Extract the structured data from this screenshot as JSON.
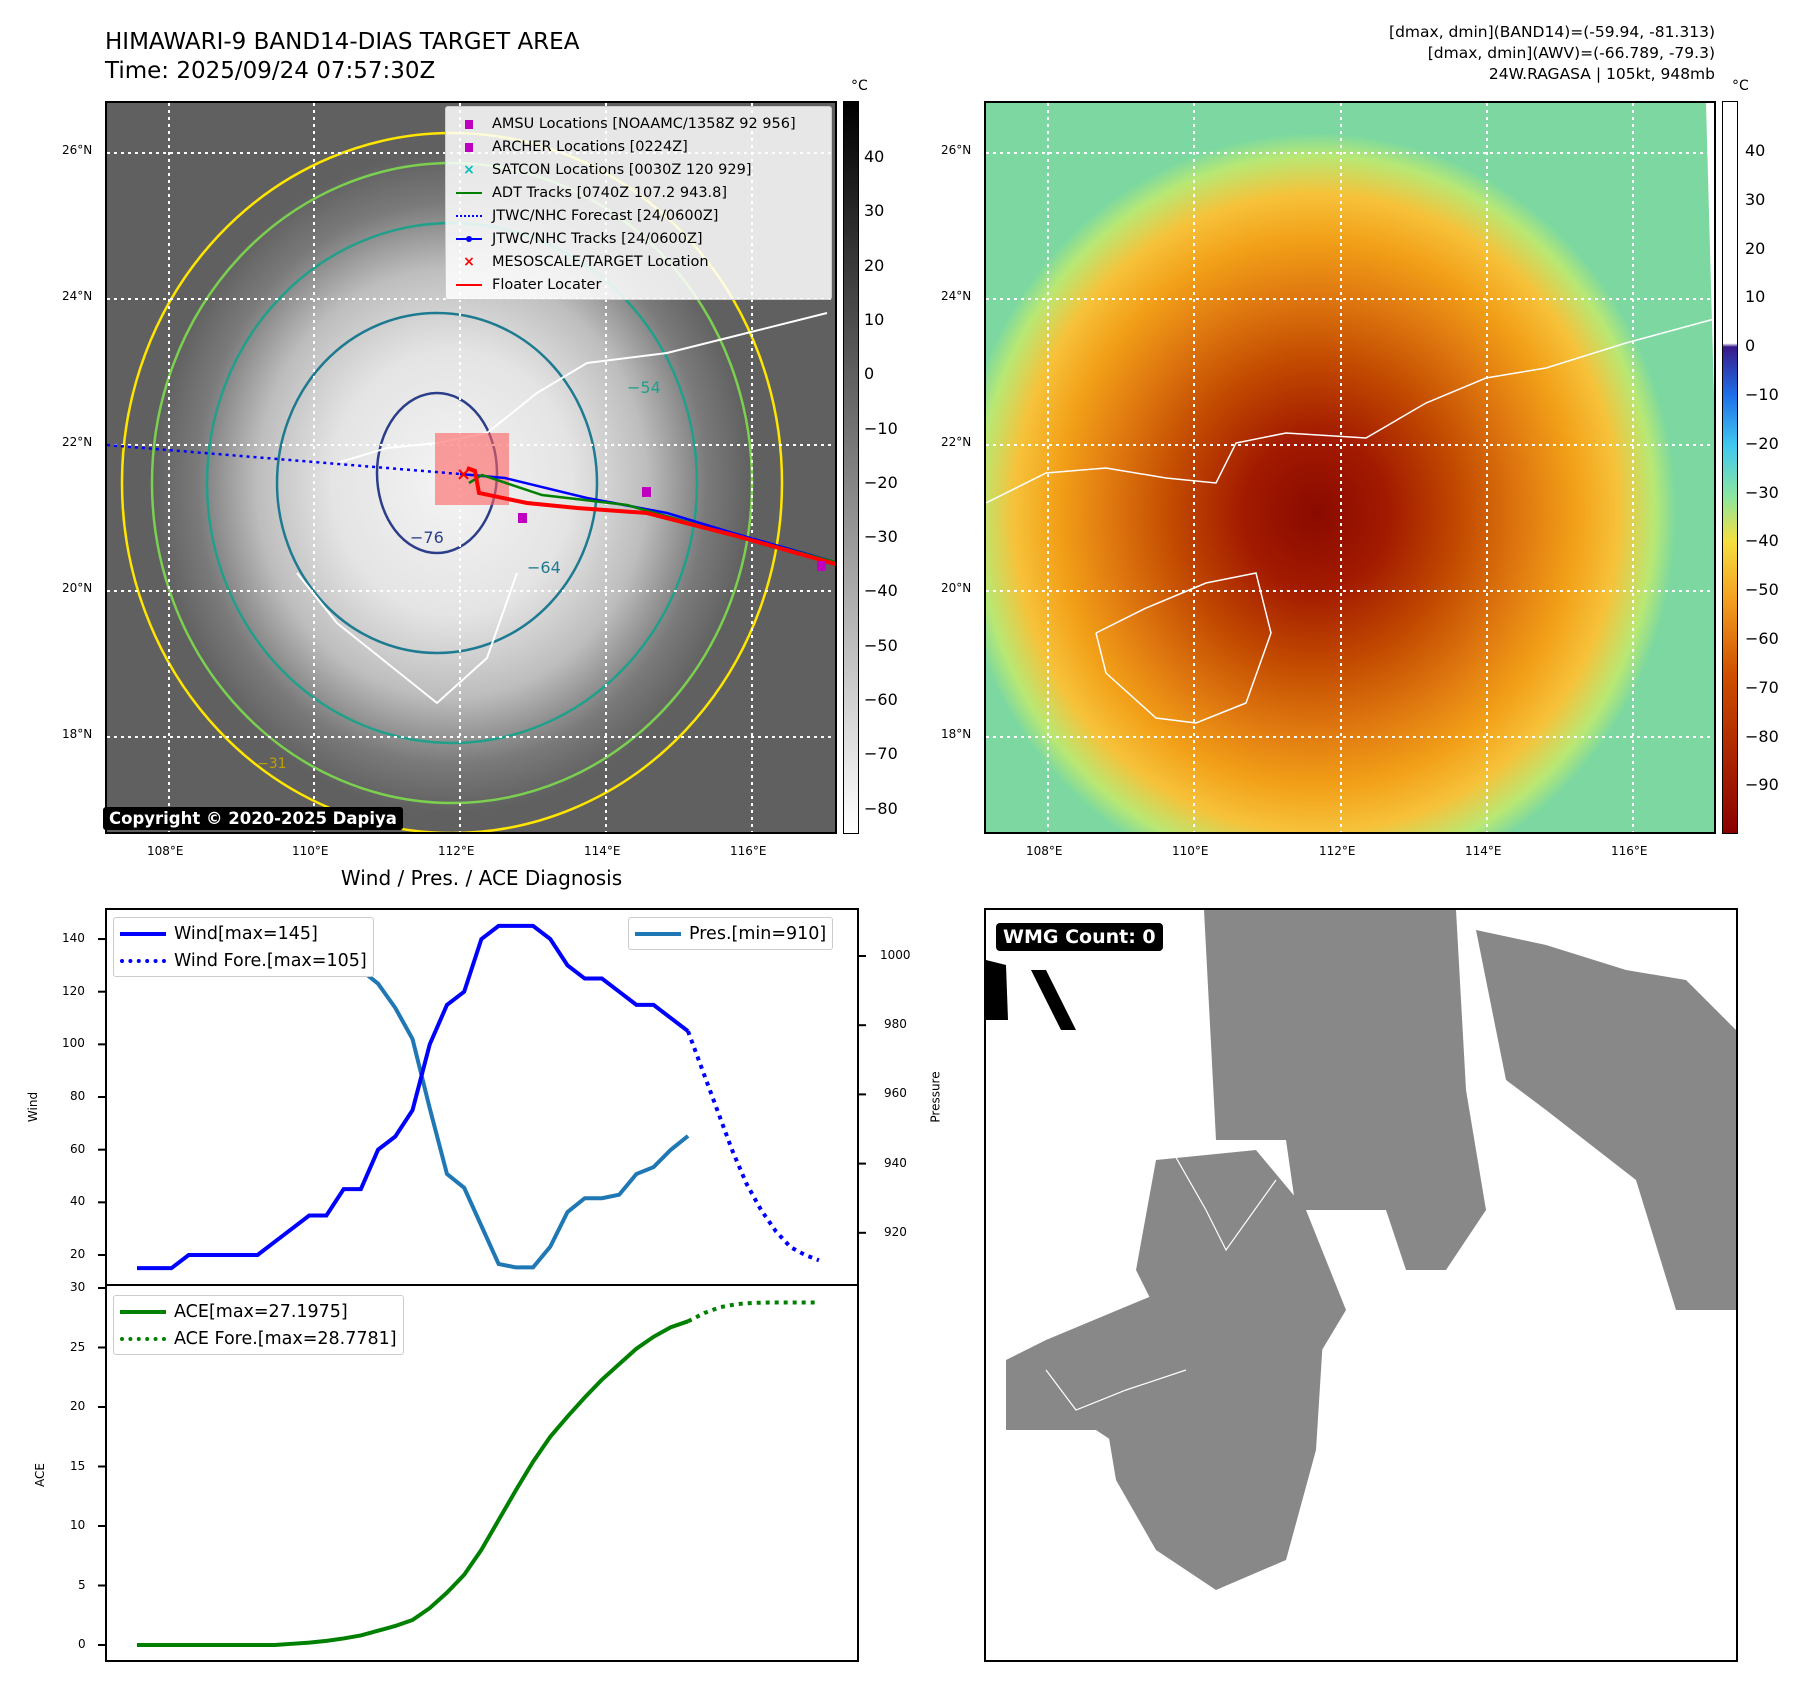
{
  "header": {
    "title": "HIMAWARI-9 BAND14-DIAS TARGET AREA",
    "time": "Time: 2025/09/24 07:57:30Z"
  },
  "info": {
    "line1": "[dmax, dmin](BAND14)=(-59.94, -81.313)",
    "line2": "[dmax, dmin](AWV)=(-66.789, -79.3)",
    "line3": "24W.RAGASA | 105kt, 948mb"
  },
  "map": {
    "lat_labels": [
      "26°N",
      "24°N",
      "22°N",
      "20°N",
      "18°N"
    ],
    "lon_labels": [
      "108°E",
      "110°E",
      "112°E",
      "114°E",
      "116°E"
    ],
    "unit": "°C",
    "cbar_left_ticks": [
      "40",
      "30",
      "20",
      "10",
      "0",
      "−10",
      "−20",
      "−30",
      "−40",
      "−50",
      "−60",
      "−70",
      "−80"
    ],
    "cbar_right_ticks": [
      "40",
      "30",
      "20",
      "10",
      "0",
      "−10",
      "−20",
      "−30",
      "−40",
      "−50",
      "−60",
      "−70",
      "−80",
      "−90"
    ],
    "contour_labels": [
      "−76",
      "−64",
      "−54",
      "−31"
    ],
    "copyright": "Copyright © 2020-2025 Dapiya",
    "legend": [
      {
        "label": "AMSU Locations [NOAAMC/1358Z 92 956]",
        "color": "#c000c0",
        "icon": "square-marker"
      },
      {
        "label": "ARCHER Locations [0224Z]",
        "color": "#c000c0",
        "icon": "square-marker"
      },
      {
        "label": "SATCON Locations [0030Z 120 929]",
        "color": "#00c0c0",
        "icon": "x-marker"
      },
      {
        "label": "ADT Tracks [0740Z 107.2 943.8]",
        "color": "#008000",
        "icon": "line"
      },
      {
        "label": "JTWC/NHC Forecast [24/0600Z]",
        "color": "#0000ff",
        "icon": "dotted-line"
      },
      {
        "label": "JTWC/NHC Tracks [24/0600Z]",
        "color": "#0000ff",
        "icon": "line-dot"
      },
      {
        "label": "MESOSCALE/TARGET Location",
        "color": "#ff0000",
        "icon": "x-marker"
      },
      {
        "label": "Floater Locater",
        "color": "#ff0000",
        "icon": "line"
      }
    ]
  },
  "wmg": {
    "label": "WMG Count: 0"
  },
  "chart_data": [
    {
      "type": "line",
      "title": "Wind / Pres. / ACE Diagnosis",
      "ylabel": "Wind",
      "ylabel_right": "Pressure",
      "ylim": [
        10,
        150
      ],
      "ylim_right": [
        905,
        1013
      ],
      "yticks": [
        "20",
        "40",
        "60",
        "80",
        "100",
        "120",
        "140"
      ],
      "yticks_right": [
        "920",
        "940",
        "960",
        "980",
        "1000"
      ],
      "series": [
        {
          "name": "Wind[max=145]",
          "color": "#0000ff",
          "style": "solid",
          "x": [
            0,
            1,
            2,
            3,
            4,
            5,
            6,
            7,
            8,
            9,
            10,
            11,
            12,
            13,
            14,
            15,
            16,
            17,
            18,
            19,
            20,
            21,
            22,
            23,
            24,
            25,
            26,
            27,
            28,
            29,
            30,
            31,
            32
          ],
          "values": [
            15,
            15,
            15,
            20,
            20,
            20,
            20,
            20,
            25,
            30,
            35,
            35,
            45,
            45,
            60,
            65,
            75,
            100,
            115,
            120,
            140,
            145,
            145,
            145,
            140,
            130,
            125,
            125,
            120,
            115,
            115,
            110,
            105
          ]
        },
        {
          "name": "Wind Fore.[max=105]",
          "color": "#0000ff",
          "style": "dotted",
          "x": [
            32,
            32.85,
            33.7,
            34.55,
            35.4,
            36.25,
            37.1,
            37.95,
            38.8,
            39.6
          ],
          "values": [
            105,
            90,
            75,
            60,
            47,
            37,
            29,
            23,
            20,
            18
          ]
        },
        {
          "name": "Pres.[min=910]",
          "color": "#1f77b4",
          "style": "solid",
          "axis": "right",
          "x": [
            0,
            1,
            2,
            3,
            4,
            5,
            6,
            7,
            8,
            9,
            10,
            11,
            12,
            13,
            14,
            15,
            16,
            17,
            18,
            19,
            20,
            21,
            22,
            23,
            24,
            25,
            26,
            27,
            28,
            29,
            30,
            31,
            32
          ],
          "values": [
            1009,
            1007,
            1007,
            1007,
            1007,
            1008,
            1008,
            1008,
            1006,
            1005,
            1004,
            1000,
            998,
            996,
            992,
            985,
            976,
            956,
            937,
            933,
            922,
            911,
            910,
            910,
            916,
            926,
            930,
            930,
            931,
            937,
            939,
            944,
            948
          ]
        }
      ]
    },
    {
      "type": "line",
      "ylabel": "ACE",
      "ylim": [
        -1,
        30
      ],
      "yticks": [
        "0",
        "5",
        "10",
        "15",
        "20",
        "25",
        "30"
      ],
      "series": [
        {
          "name": "ACE[max=27.1975]",
          "color": "#008000",
          "style": "solid",
          "x": [
            0,
            1,
            2,
            3,
            4,
            5,
            6,
            7,
            8,
            9,
            10,
            11,
            12,
            13,
            14,
            15,
            16,
            17,
            18,
            19,
            20,
            21,
            22,
            23,
            24,
            25,
            26,
            27,
            28,
            29,
            30,
            31,
            32
          ],
          "values": [
            0,
            0,
            0,
            0,
            0,
            0,
            0,
            0,
            0,
            0.1,
            0.2,
            0.35,
            0.55,
            0.8,
            1.2,
            1.6,
            2.1,
            3.1,
            4.4,
            5.9,
            8.0,
            10.5,
            13.0,
            15.4,
            17.5,
            19.2,
            20.8,
            22.3,
            23.6,
            24.9,
            25.9,
            26.7,
            27.2
          ]
        },
        {
          "name": "ACE Fore.[max=28.7781]",
          "color": "#008000",
          "style": "dotted",
          "x": [
            32,
            32.95,
            33.9,
            34.85,
            35.8,
            36.75,
            37.7,
            38.65,
            39.6
          ],
          "values": [
            27.2,
            27.9,
            28.4,
            28.65,
            28.75,
            28.78,
            28.78,
            28.78,
            28.78
          ]
        }
      ]
    }
  ]
}
